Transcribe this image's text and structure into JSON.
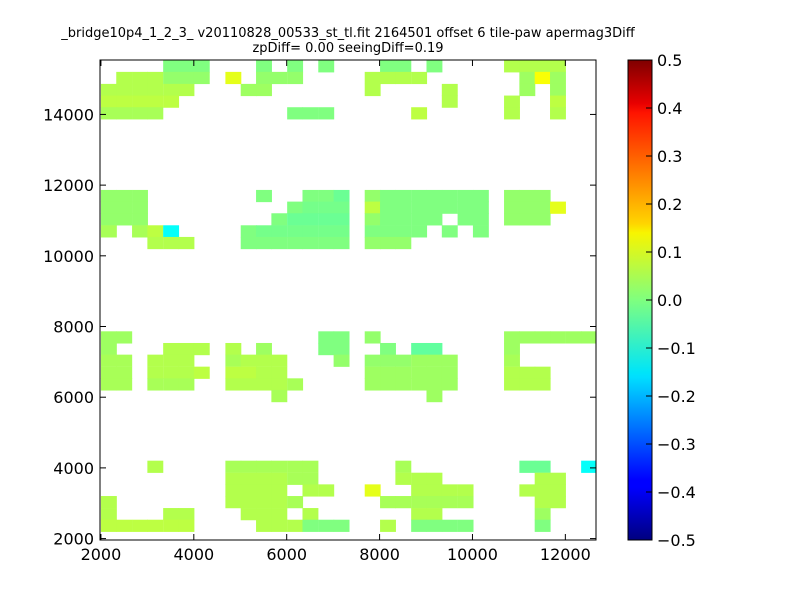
{
  "chart_data": {
    "type": "heatmap",
    "title_line1": "_bridge10p4_1_2_3_ v20110828_00533_st_tl.fit 2164501 offset 6 tile-paw apermag3Diff",
    "title_line2": "zpDiff= 0.00 seeingDiff=0.19",
    "xlim": [
      1980,
      12660
    ],
    "ylim": [
      1960,
      15540
    ],
    "x_ticks": [
      2000,
      4000,
      6000,
      8000,
      10000,
      12000
    ],
    "y_ticks": [
      2000,
      4000,
      6000,
      8000,
      10000,
      12000,
      14000
    ],
    "cell_size": 334,
    "colorbar": {
      "min": -0.5,
      "max": 0.5,
      "ticks": [
        0.5,
        0.4,
        0.3,
        0.2,
        0.1,
        0.0,
        -0.1,
        -0.2,
        -0.3,
        -0.4,
        -0.5
      ],
      "tick_labels": [
        "0.5",
        "0.4",
        "0.3",
        "0.2",
        "0.1",
        "0.0",
        "−0.1",
        "−0.2",
        "−0.3",
        "−0.4",
        "−0.5"
      ],
      "colormap": "jet"
    },
    "cells": [
      [
        3340,
        15200,
        0.0
      ],
      [
        3670,
        15200,
        0.0
      ],
      [
        4000,
        15200,
        0.0
      ],
      [
        5340,
        15200,
        0.0
      ],
      [
        6010,
        15200,
        0.0
      ],
      [
        6680,
        15200,
        0.0
      ],
      [
        8010,
        15200,
        0.0
      ],
      [
        8340,
        15200,
        0.0
      ],
      [
        9010,
        15200,
        0.0
      ],
      [
        10680,
        15200,
        0.05
      ],
      [
        11010,
        15200,
        0.05
      ],
      [
        11340,
        15200,
        0.05
      ],
      [
        11670,
        15200,
        0.05
      ],
      [
        2330,
        14870,
        0.05
      ],
      [
        2670,
        14870,
        0.05
      ],
      [
        3000,
        14870,
        0.05
      ],
      [
        3340,
        14870,
        0.02
      ],
      [
        3670,
        14870,
        0.02
      ],
      [
        4000,
        14870,
        0.02
      ],
      [
        4680,
        14870,
        0.1
      ],
      [
        5340,
        14870,
        0.02
      ],
      [
        5670,
        14870,
        0.02
      ],
      [
        6010,
        14870,
        0.02
      ],
      [
        7680,
        14870,
        0.05
      ],
      [
        8010,
        14870,
        0.05
      ],
      [
        8340,
        14870,
        0.05
      ],
      [
        8680,
        14870,
        0.05
      ],
      [
        11010,
        14870,
        0.03
      ],
      [
        11340,
        14870,
        0.12
      ],
      [
        11670,
        14870,
        0.03
      ],
      [
        2000,
        14530,
        0.05
      ],
      [
        2330,
        14530,
        0.05
      ],
      [
        2670,
        14530,
        0.05
      ],
      [
        3000,
        14530,
        0.05
      ],
      [
        3340,
        14530,
        0.05
      ],
      [
        3670,
        14530,
        0.05
      ],
      [
        5010,
        14530,
        0.03
      ],
      [
        5340,
        14530,
        0.03
      ],
      [
        7680,
        14530,
        0.05
      ],
      [
        9340,
        14530,
        0.05
      ],
      [
        11010,
        14530,
        0.03
      ],
      [
        11670,
        14530,
        0.03
      ],
      [
        2000,
        14200,
        0.06
      ],
      [
        2330,
        14200,
        0.06
      ],
      [
        2670,
        14200,
        0.06
      ],
      [
        3000,
        14200,
        0.06
      ],
      [
        3340,
        14200,
        0.06
      ],
      [
        9340,
        14200,
        0.05
      ],
      [
        10680,
        14200,
        0.05
      ],
      [
        11670,
        14200,
        0.06
      ],
      [
        2000,
        13870,
        0.04
      ],
      [
        2330,
        13870,
        0.04
      ],
      [
        2670,
        13870,
        0.04
      ],
      [
        3000,
        13870,
        0.04
      ],
      [
        6010,
        13870,
        0.0
      ],
      [
        6340,
        13870,
        0.0
      ],
      [
        6680,
        13870,
        0.0
      ],
      [
        8680,
        13870,
        0.06
      ],
      [
        10680,
        13870,
        0.05
      ],
      [
        11670,
        13870,
        0.05
      ],
      [
        2000,
        11530,
        0.02
      ],
      [
        2330,
        11530,
        0.02
      ],
      [
        2670,
        11530,
        0.02
      ],
      [
        5340,
        11530,
        0.0
      ],
      [
        6340,
        11530,
        0.0
      ],
      [
        6680,
        11530,
        0.0
      ],
      [
        7010,
        11530,
        -0.02
      ],
      [
        7680,
        11530,
        0.02
      ],
      [
        8010,
        11530,
        0.0
      ],
      [
        8340,
        11530,
        0.0
      ],
      [
        8680,
        11530,
        0.0
      ],
      [
        9010,
        11530,
        0.0
      ],
      [
        9340,
        11530,
        0.0
      ],
      [
        9680,
        11530,
        0.0
      ],
      [
        10010,
        11530,
        0.0
      ],
      [
        10680,
        11530,
        0.02
      ],
      [
        11010,
        11530,
        0.02
      ],
      [
        11340,
        11530,
        0.02
      ],
      [
        2000,
        11200,
        0.02
      ],
      [
        2330,
        11200,
        0.02
      ],
      [
        2670,
        11200,
        0.02
      ],
      [
        6010,
        11200,
        0.0
      ],
      [
        6340,
        11200,
        -0.01
      ],
      [
        6680,
        11200,
        -0.01
      ],
      [
        7010,
        11200,
        -0.01
      ],
      [
        7680,
        11200,
        0.06
      ],
      [
        8010,
        11200,
        0.0
      ],
      [
        8340,
        11200,
        0.0
      ],
      [
        8680,
        11200,
        0.0
      ],
      [
        9010,
        11200,
        0.0
      ],
      [
        9340,
        11200,
        0.0
      ],
      [
        9680,
        11200,
        0.0
      ],
      [
        10010,
        11200,
        0.0
      ],
      [
        10680,
        11200,
        0.02
      ],
      [
        11010,
        11200,
        0.02
      ],
      [
        11340,
        11200,
        0.02
      ],
      [
        11670,
        11200,
        0.1
      ],
      [
        2000,
        10870,
        0.02
      ],
      [
        2330,
        10870,
        0.02
      ],
      [
        2670,
        10870,
        0.02
      ],
      [
        5670,
        10870,
        0.0
      ],
      [
        6010,
        10870,
        -0.02
      ],
      [
        6340,
        10870,
        -0.02
      ],
      [
        6680,
        10870,
        -0.02
      ],
      [
        7010,
        10870,
        -0.02
      ],
      [
        7680,
        10870,
        0.02
      ],
      [
        8010,
        10870,
        0.0
      ],
      [
        8340,
        10870,
        0.0
      ],
      [
        8680,
        10870,
        0.0
      ],
      [
        9010,
        10870,
        0.0
      ],
      [
        9680,
        10870,
        0.0
      ],
      [
        10010,
        10870,
        0.0
      ],
      [
        10680,
        10870,
        0.02
      ],
      [
        11010,
        10870,
        0.02
      ],
      [
        11340,
        10870,
        0.02
      ],
      [
        2000,
        10530,
        0.04
      ],
      [
        2670,
        10530,
        0.04
      ],
      [
        3000,
        10530,
        0.06
      ],
      [
        3340,
        10530,
        -0.12
      ],
      [
        5010,
        10530,
        0.0
      ],
      [
        5340,
        10530,
        -0.01
      ],
      [
        5670,
        10530,
        -0.01
      ],
      [
        6010,
        10530,
        -0.01
      ],
      [
        6340,
        10530,
        -0.01
      ],
      [
        6680,
        10530,
        -0.01
      ],
      [
        7010,
        10530,
        -0.01
      ],
      [
        7680,
        10530,
        0.0
      ],
      [
        8010,
        10530,
        0.0
      ],
      [
        8340,
        10530,
        0.0
      ],
      [
        8680,
        10530,
        0.0
      ],
      [
        9340,
        10530,
        0.0
      ],
      [
        10010,
        10530,
        0.0
      ],
      [
        3000,
        10200,
        0.05
      ],
      [
        3340,
        10200,
        0.05
      ],
      [
        3670,
        10200,
        0.05
      ],
      [
        5010,
        10200,
        0.0
      ],
      [
        5340,
        10200,
        0.0
      ],
      [
        5670,
        10200,
        0.0
      ],
      [
        6010,
        10200,
        0.0
      ],
      [
        6340,
        10200,
        0.0
      ],
      [
        6680,
        10200,
        0.0
      ],
      [
        7010,
        10200,
        0.0
      ],
      [
        7680,
        10200,
        0.02
      ],
      [
        8010,
        10200,
        0.02
      ],
      [
        8340,
        10200,
        0.02
      ],
      [
        2000,
        7530,
        0.03
      ],
      [
        2330,
        7530,
        0.03
      ],
      [
        6680,
        7530,
        0.0
      ],
      [
        7010,
        7530,
        0.0
      ],
      [
        7680,
        7530,
        0.02
      ],
      [
        10680,
        7530,
        0.03
      ],
      [
        11010,
        7530,
        0.03
      ],
      [
        11340,
        7530,
        0.03
      ],
      [
        11670,
        7530,
        0.03
      ],
      [
        12010,
        7530,
        0.03
      ],
      [
        12340,
        7530,
        0.03
      ],
      [
        2000,
        7200,
        0.03
      ],
      [
        3340,
        7200,
        0.05
      ],
      [
        3670,
        7200,
        0.05
      ],
      [
        4000,
        7200,
        0.05
      ],
      [
        4680,
        7200,
        0.05
      ],
      [
        5340,
        7200,
        0.03
      ],
      [
        6680,
        7200,
        0.0
      ],
      [
        7010,
        7200,
        0.0
      ],
      [
        8010,
        7200,
        0.0
      ],
      [
        8680,
        7200,
        -0.03
      ],
      [
        9010,
        7200,
        -0.03
      ],
      [
        10680,
        7200,
        0.03
      ],
      [
        2000,
        6870,
        0.04
      ],
      [
        2330,
        6870,
        0.04
      ],
      [
        3000,
        6870,
        0.05
      ],
      [
        3340,
        6870,
        0.05
      ],
      [
        3670,
        6870,
        0.05
      ],
      [
        4680,
        6870,
        0.04
      ],
      [
        5010,
        6870,
        0.05
      ],
      [
        5340,
        6870,
        0.05
      ],
      [
        5670,
        6870,
        0.05
      ],
      [
        7010,
        6870,
        0.02
      ],
      [
        7680,
        6870,
        0.02
      ],
      [
        8010,
        6870,
        0.02
      ],
      [
        8340,
        6870,
        0.02
      ],
      [
        8680,
        6870,
        0.03
      ],
      [
        9010,
        6870,
        0.03
      ],
      [
        9340,
        6870,
        0.03
      ],
      [
        10680,
        6870,
        0.04
      ],
      [
        2000,
        6530,
        0.04
      ],
      [
        2330,
        6530,
        0.04
      ],
      [
        3000,
        6530,
        0.05
      ],
      [
        3340,
        6530,
        0.05
      ],
      [
        3670,
        6530,
        0.05
      ],
      [
        4000,
        6530,
        0.06
      ],
      [
        4680,
        6530,
        0.06
      ],
      [
        5010,
        6530,
        0.06
      ],
      [
        5340,
        6530,
        0.05
      ],
      [
        5670,
        6530,
        0.05
      ],
      [
        7680,
        6530,
        0.03
      ],
      [
        8010,
        6530,
        0.03
      ],
      [
        8340,
        6530,
        0.03
      ],
      [
        8680,
        6530,
        0.03
      ],
      [
        9010,
        6530,
        0.03
      ],
      [
        9340,
        6530,
        0.03
      ],
      [
        10680,
        6530,
        0.05
      ],
      [
        11010,
        6530,
        0.05
      ],
      [
        11340,
        6530,
        0.05
      ],
      [
        2000,
        6200,
        0.04
      ],
      [
        2330,
        6200,
        0.04
      ],
      [
        3000,
        6200,
        0.04
      ],
      [
        3340,
        6200,
        0.04
      ],
      [
        3670,
        6200,
        0.04
      ],
      [
        4680,
        6200,
        0.05
      ],
      [
        5010,
        6200,
        0.05
      ],
      [
        5340,
        6200,
        0.05
      ],
      [
        5670,
        6200,
        0.05
      ],
      [
        6010,
        6200,
        0.04
      ],
      [
        7680,
        6200,
        0.03
      ],
      [
        8010,
        6200,
        0.03
      ],
      [
        8340,
        6200,
        0.03
      ],
      [
        8680,
        6200,
        0.03
      ],
      [
        9010,
        6200,
        0.03
      ],
      [
        9340,
        6200,
        0.03
      ],
      [
        10680,
        6200,
        0.05
      ],
      [
        11010,
        6200,
        0.05
      ],
      [
        11340,
        6200,
        0.05
      ],
      [
        5670,
        5870,
        0.04
      ],
      [
        9010,
        5870,
        0.03
      ],
      [
        3000,
        3870,
        0.05
      ],
      [
        4680,
        3870,
        0.04
      ],
      [
        5010,
        3870,
        0.04
      ],
      [
        5340,
        3870,
        0.04
      ],
      [
        5670,
        3870,
        0.04
      ],
      [
        6010,
        3870,
        0.04
      ],
      [
        6340,
        3870,
        0.04
      ],
      [
        8340,
        3870,
        0.04
      ],
      [
        11010,
        3870,
        -0.02
      ],
      [
        11340,
        3870,
        -0.02
      ],
      [
        12340,
        3870,
        -0.12
      ],
      [
        4680,
        3530,
        0.05
      ],
      [
        5010,
        3530,
        0.05
      ],
      [
        5340,
        3530,
        0.05
      ],
      [
        5670,
        3530,
        0.05
      ],
      [
        6010,
        3530,
        0.04
      ],
      [
        6340,
        3530,
        0.04
      ],
      [
        8340,
        3530,
        0.05
      ],
      [
        8680,
        3530,
        0.05
      ],
      [
        9010,
        3530,
        0.05
      ],
      [
        11340,
        3530,
        0.05
      ],
      [
        11670,
        3530,
        0.05
      ],
      [
        4680,
        3200,
        0.05
      ],
      [
        5010,
        3200,
        0.05
      ],
      [
        5340,
        3200,
        0.05
      ],
      [
        5670,
        3200,
        0.05
      ],
      [
        6340,
        3200,
        0.05
      ],
      [
        6680,
        3200,
        0.05
      ],
      [
        7680,
        3200,
        0.1
      ],
      [
        8680,
        3200,
        0.05
      ],
      [
        9010,
        3200,
        0.05
      ],
      [
        9340,
        3200,
        0.05
      ],
      [
        9680,
        3200,
        0.05
      ],
      [
        11010,
        3200,
        0.05
      ],
      [
        11340,
        3200,
        0.05
      ],
      [
        11670,
        3200,
        0.05
      ],
      [
        2000,
        2870,
        0.05
      ],
      [
        4680,
        2870,
        0.05
      ],
      [
        5010,
        2870,
        0.05
      ],
      [
        5340,
        2870,
        0.05
      ],
      [
        5670,
        2870,
        0.05
      ],
      [
        6010,
        2870,
        0.04
      ],
      [
        8010,
        2870,
        0.04
      ],
      [
        8340,
        2870,
        0.04
      ],
      [
        8680,
        2870,
        0.04
      ],
      [
        9010,
        2870,
        0.04
      ],
      [
        9340,
        2870,
        0.04
      ],
      [
        9680,
        2870,
        0.04
      ],
      [
        11340,
        2870,
        0.05
      ],
      [
        11670,
        2870,
        0.05
      ],
      [
        2000,
        2530,
        0.05
      ],
      [
        3340,
        2530,
        0.05
      ],
      [
        3670,
        2530,
        0.05
      ],
      [
        5010,
        2530,
        0.05
      ],
      [
        5340,
        2530,
        0.05
      ],
      [
        5670,
        2530,
        0.05
      ],
      [
        6340,
        2530,
        0.05
      ],
      [
        8680,
        2530,
        0.05
      ],
      [
        9010,
        2530,
        0.05
      ],
      [
        11340,
        2530,
        0.03
      ],
      [
        2000,
        2200,
        0.06
      ],
      [
        2330,
        2200,
        0.06
      ],
      [
        2670,
        2200,
        0.06
      ],
      [
        3000,
        2200,
        0.06
      ],
      [
        3340,
        2200,
        0.06
      ],
      [
        3670,
        2200,
        0.06
      ],
      [
        5340,
        2200,
        0.05
      ],
      [
        5670,
        2200,
        0.05
      ],
      [
        6010,
        2200,
        0.05
      ],
      [
        6340,
        2200,
        0.0
      ],
      [
        6680,
        2200,
        0.0
      ],
      [
        7010,
        2200,
        0.0
      ],
      [
        8010,
        2200,
        0.05
      ],
      [
        8680,
        2200,
        0.0
      ],
      [
        9010,
        2200,
        0.0
      ],
      [
        9340,
        2200,
        0.0
      ],
      [
        9680,
        2200,
        0.0
      ],
      [
        11340,
        2200,
        0.0
      ]
    ]
  }
}
